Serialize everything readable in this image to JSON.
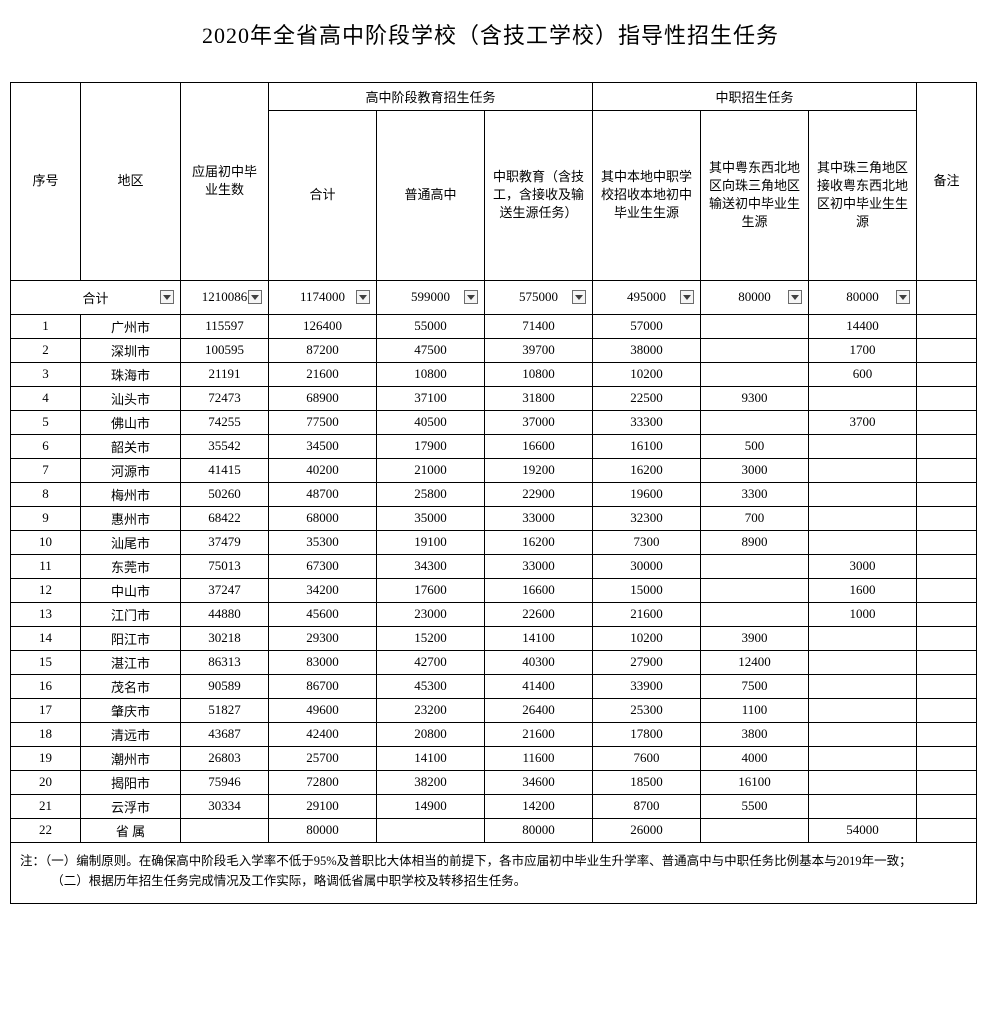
{
  "title": "2020年全省高中阶段学校（含技工学校）指导性招生任务",
  "headers": {
    "seq": "序号",
    "region": "地区",
    "grads": "应届初中毕业生数",
    "group_hs": "高中阶段教育招生任务",
    "group_voc": "中职招生任务",
    "total": "合计",
    "general_hs": "普通高中",
    "voc_edu": "中职教育（含技工，含接收及输送生源任务）",
    "local_src": "其中本地中职学校招收本地初中毕业生生源",
    "outbound": "其中粤东西北地区向珠三角地区输送初中毕业生生源",
    "inbound": "其中珠三角地区接收粤东西北地区初中毕业生生源",
    "remark": "备注",
    "sum_label": "合计"
  },
  "totals": {
    "grads": "1210086",
    "total": "1174000",
    "general_hs": "599000",
    "voc_edu": "575000",
    "local_src": "495000",
    "outbound": "80000",
    "inbound": "80000"
  },
  "rows": [
    {
      "seq": "1",
      "region": "广州市",
      "grads": "115597",
      "total": "126400",
      "gen": "55000",
      "voc": "71400",
      "loc": "57000",
      "out": "",
      "in": "14400"
    },
    {
      "seq": "2",
      "region": "深圳市",
      "grads": "100595",
      "total": "87200",
      "gen": "47500",
      "voc": "39700",
      "loc": "38000",
      "out": "",
      "in": "1700"
    },
    {
      "seq": "3",
      "region": "珠海市",
      "grads": "21191",
      "total": "21600",
      "gen": "10800",
      "voc": "10800",
      "loc": "10200",
      "out": "",
      "in": "600"
    },
    {
      "seq": "4",
      "region": "汕头市",
      "grads": "72473",
      "total": "68900",
      "gen": "37100",
      "voc": "31800",
      "loc": "22500",
      "out": "9300",
      "in": ""
    },
    {
      "seq": "5",
      "region": "佛山市",
      "grads": "74255",
      "total": "77500",
      "gen": "40500",
      "voc": "37000",
      "loc": "33300",
      "out": "",
      "in": "3700"
    },
    {
      "seq": "6",
      "region": "韶关市",
      "grads": "35542",
      "total": "34500",
      "gen": "17900",
      "voc": "16600",
      "loc": "16100",
      "out": "500",
      "in": ""
    },
    {
      "seq": "7",
      "region": "河源市",
      "grads": "41415",
      "total": "40200",
      "gen": "21000",
      "voc": "19200",
      "loc": "16200",
      "out": "3000",
      "in": ""
    },
    {
      "seq": "8",
      "region": "梅州市",
      "grads": "50260",
      "total": "48700",
      "gen": "25800",
      "voc": "22900",
      "loc": "19600",
      "out": "3300",
      "in": ""
    },
    {
      "seq": "9",
      "region": "惠州市",
      "grads": "68422",
      "total": "68000",
      "gen": "35000",
      "voc": "33000",
      "loc": "32300",
      "out": "700",
      "in": ""
    },
    {
      "seq": "10",
      "region": "汕尾市",
      "grads": "37479",
      "total": "35300",
      "gen": "19100",
      "voc": "16200",
      "loc": "7300",
      "out": "8900",
      "in": ""
    },
    {
      "seq": "11",
      "region": "东莞市",
      "grads": "75013",
      "total": "67300",
      "gen": "34300",
      "voc": "33000",
      "loc": "30000",
      "out": "",
      "in": "3000"
    },
    {
      "seq": "12",
      "region": "中山市",
      "grads": "37247",
      "total": "34200",
      "gen": "17600",
      "voc": "16600",
      "loc": "15000",
      "out": "",
      "in": "1600"
    },
    {
      "seq": "13",
      "region": "江门市",
      "grads": "44880",
      "total": "45600",
      "gen": "23000",
      "voc": "22600",
      "loc": "21600",
      "out": "",
      "in": "1000"
    },
    {
      "seq": "14",
      "region": "阳江市",
      "grads": "30218",
      "total": "29300",
      "gen": "15200",
      "voc": "14100",
      "loc": "10200",
      "out": "3900",
      "in": ""
    },
    {
      "seq": "15",
      "region": "湛江市",
      "grads": "86313",
      "total": "83000",
      "gen": "42700",
      "voc": "40300",
      "loc": "27900",
      "out": "12400",
      "in": ""
    },
    {
      "seq": "16",
      "region": "茂名市",
      "grads": "90589",
      "total": "86700",
      "gen": "45300",
      "voc": "41400",
      "loc": "33900",
      "out": "7500",
      "in": ""
    },
    {
      "seq": "17",
      "region": "肇庆市",
      "grads": "51827",
      "total": "49600",
      "gen": "23200",
      "voc": "26400",
      "loc": "25300",
      "out": "1100",
      "in": ""
    },
    {
      "seq": "18",
      "region": "清远市",
      "grads": "43687",
      "total": "42400",
      "gen": "20800",
      "voc": "21600",
      "loc": "17800",
      "out": "3800",
      "in": ""
    },
    {
      "seq": "19",
      "region": "潮州市",
      "grads": "26803",
      "total": "25700",
      "gen": "14100",
      "voc": "11600",
      "loc": "7600",
      "out": "4000",
      "in": ""
    },
    {
      "seq": "20",
      "region": "揭阳市",
      "grads": "75946",
      "total": "72800",
      "gen": "38200",
      "voc": "34600",
      "loc": "18500",
      "out": "16100",
      "in": ""
    },
    {
      "seq": "21",
      "region": "云浮市",
      "grads": "30334",
      "total": "29100",
      "gen": "14900",
      "voc": "14200",
      "loc": "8700",
      "out": "5500",
      "in": ""
    },
    {
      "seq": "22",
      "region": "省 属",
      "grads": "",
      "total": "80000",
      "gen": "",
      "voc": "80000",
      "loc": "26000",
      "out": "",
      "in": "54000"
    }
  ],
  "notes_line1": "注：（一）编制原则。在确保高中阶段毛入学率不低于95%及普职比大体相当的前提下，各市应届初中毕业生升学率、普通高中与中职任务比例基本与2019年一致；",
  "notes_line2": "　　　（二）根据历年招生任务完成情况及工作实际，略调低省属中职学校及转移招生任务。",
  "colors": {
    "border": "#000000",
    "background": "#ffffff",
    "text": "#000000",
    "dropdown_stroke": "#6b6b6b",
    "dropdown_fill": "#f5f5f5"
  }
}
